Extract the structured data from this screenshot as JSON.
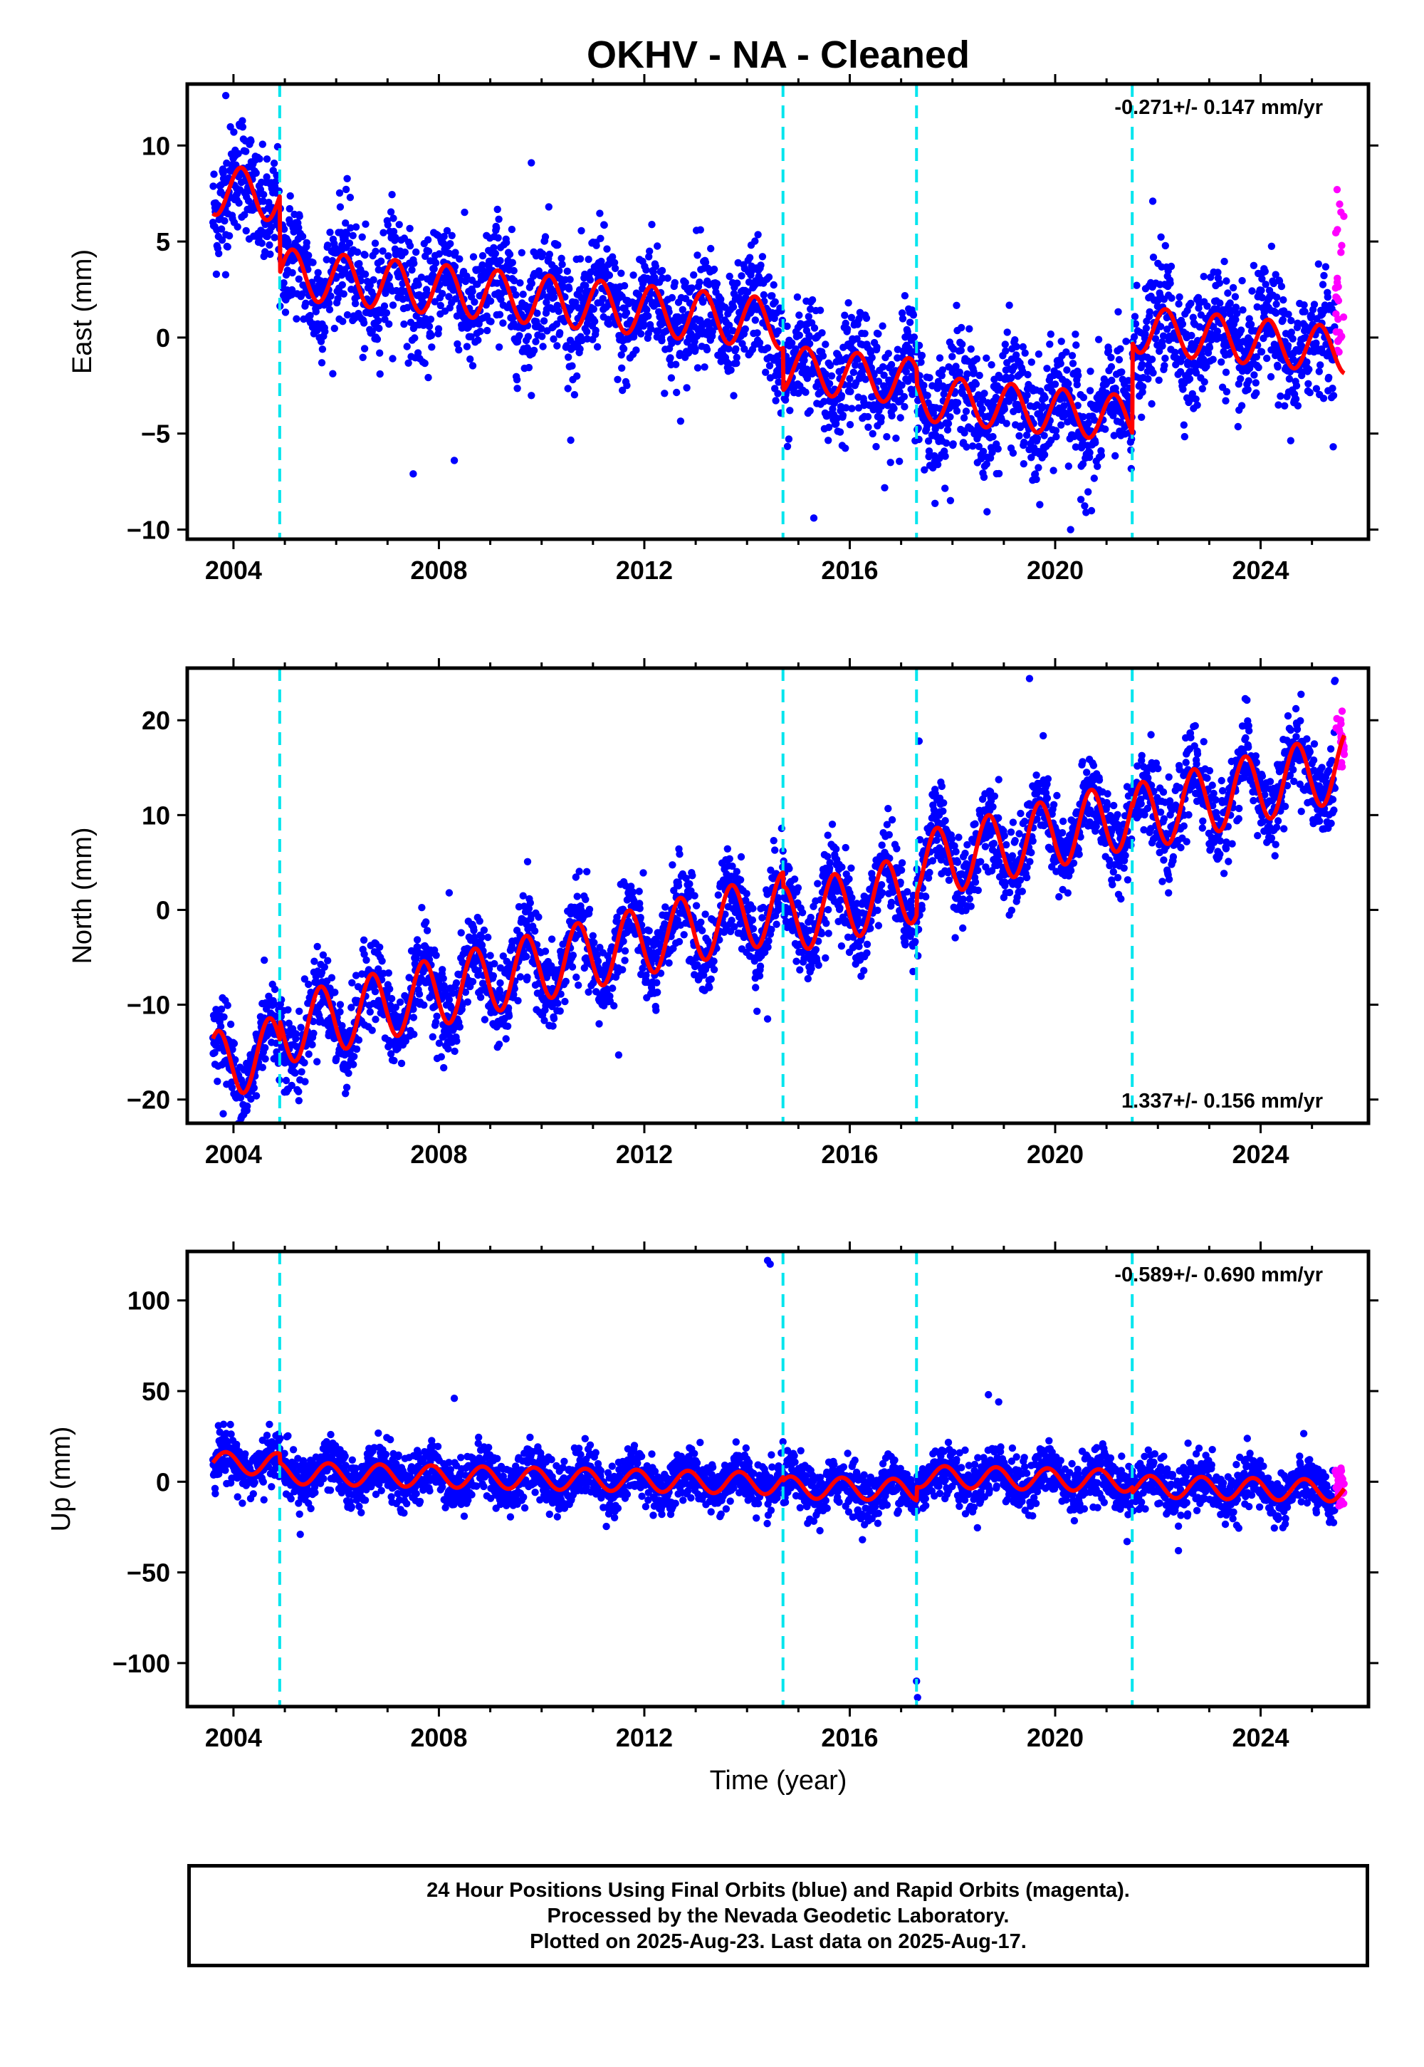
{
  "title": "OKHV  - NA - Cleaned",
  "xlabel": "Time (year)",
  "footer": [
    "24 Hour Positions Using Final Orbits (blue) and Rapid Orbits (magenta).",
    "Processed by the Nevada Geodetic Laboratory.",
    "Plotted on 2025-Aug-23. Last data on 2025-Aug-17."
  ],
  "colors": {
    "final": "#0000ff",
    "rapid": "#ff00ff",
    "model": "#ff0000",
    "breaks": "#00e5ee"
  },
  "chart_data": [
    {
      "type": "scatter",
      "panel": "east",
      "ylabel": "East (mm)",
      "xlim": [
        2003.1,
        2026.1
      ],
      "ylim": [
        -10.5,
        13.2
      ],
      "xticks": [
        2004,
        2008,
        2012,
        2016,
        2020,
        2024
      ],
      "yticks": [
        -10,
        -5,
        0,
        5,
        10
      ],
      "rate_text": "-0.271+/- 0.147 mm/yr",
      "rate_position": "top-right",
      "breaks": [
        2004.9,
        2014.7,
        2017.3,
        2021.5
      ],
      "model": {
        "name": "model",
        "data_start": 2003.6,
        "data_end": 2025.63,
        "segments": [
          {
            "start": 2003.6,
            "end": 2004.9,
            "offset": 7.7,
            "rate": -0.271,
            "amp": 1.3,
            "phase": 0.9
          },
          {
            "start": 2004.9,
            "end": 2014.7,
            "offset": 3.7,
            "rate": -0.271,
            "amp": 1.3,
            "phase": 0.9
          },
          {
            "start": 2014.7,
            "end": 2017.3,
            "offset": 1.4,
            "rate": -0.271,
            "amp": 1.2,
            "phase": 0.9
          },
          {
            "start": 2017.3,
            "end": 2021.5,
            "offset": 0.6,
            "rate": -0.271,
            "amp": 1.2,
            "phase": 0.9
          },
          {
            "start": 2021.5,
            "end": 2025.63,
            "offset": 5.3,
            "rate": -0.271,
            "amp": 1.2,
            "phase": 0.9
          }
        ]
      },
      "final_scatter": 1.5,
      "rapid": {
        "x_start": 2025.45,
        "x_end": 2025.63,
        "y_min": -1.0,
        "y_max": 7.8
      },
      "outliers": [
        [
          2003.85,
          12.6
        ],
        [
          2007.5,
          -7.1
        ],
        [
          2008.3,
          -6.4
        ],
        [
          2009.8,
          9.1
        ],
        [
          2015.3,
          -9.4
        ],
        [
          2019.7,
          -8.7
        ],
        [
          2020.3,
          -10.0
        ],
        [
          2021.9,
          7.1
        ]
      ]
    },
    {
      "type": "scatter",
      "panel": "north",
      "ylabel": "North (mm)",
      "xlim": [
        2003.1,
        2026.1
      ],
      "ylim": [
        -22.5,
        25.5
      ],
      "xticks": [
        2004,
        2008,
        2012,
        2016,
        2020,
        2024
      ],
      "yticks": [
        -20,
        -10,
        0,
        10,
        20
      ],
      "rate_text": "1.337+/- 0.156 mm/yr",
      "rate_position": "bottom-right",
      "breaks": [
        2004.9,
        2014.7,
        2017.3,
        2021.5
      ],
      "model": {
        "name": "model",
        "data_start": 2003.6,
        "data_end": 2025.63,
        "segments": [
          {
            "start": 2003.6,
            "end": 2004.9,
            "offset": -16.5,
            "rate": 1.337,
            "amp": 3.6,
            "phase": 0.45
          },
          {
            "start": 2004.9,
            "end": 2014.7,
            "offset": -14.5,
            "rate": 1.337,
            "amp": 3.6,
            "phase": 0.45
          },
          {
            "start": 2014.7,
            "end": 2017.3,
            "offset": -16.0,
            "rate": 1.337,
            "amp": 3.6,
            "phase": 0.45
          },
          {
            "start": 2017.3,
            "end": 2021.5,
            "offset": -13.8,
            "rate": 1.337,
            "amp": 3.6,
            "phase": 0.45
          },
          {
            "start": 2021.5,
            "end": 2025.63,
            "offset": -14.3,
            "rate": 1.337,
            "amp": 3.6,
            "phase": 0.45
          }
        ]
      },
      "final_scatter": 2.2,
      "rapid": {
        "x_start": 2025.45,
        "x_end": 2025.63,
        "y_min": 15.0,
        "y_max": 22.0
      },
      "outliers": [
        [
          2003.8,
          -21.5
        ],
        [
          2004.6,
          -5.3
        ],
        [
          2011.5,
          -15.3
        ],
        [
          2014.4,
          -11.5
        ],
        [
          2017.35,
          17.8
        ],
        [
          2019.5,
          24.4
        ],
        [
          2025.45,
          24.2
        ],
        [
          2008.2,
          1.8
        ]
      ]
    },
    {
      "type": "scatter",
      "panel": "up",
      "ylabel": "Up (mm)",
      "xlim": [
        2003.1,
        2026.1
      ],
      "ylim": [
        -124,
        127
      ],
      "xticks": [
        2004,
        2008,
        2012,
        2016,
        2020,
        2024
      ],
      "yticks": [
        -100,
        -50,
        0,
        50,
        100
      ],
      "rate_text": "-0.589+/- 0.690 mm/yr",
      "rate_position": "top-right",
      "breaks": [
        2004.9,
        2014.7,
        2017.3,
        2021.5
      ],
      "model": {
        "name": "model",
        "data_start": 2003.6,
        "data_end": 2025.63,
        "segments": [
          {
            "start": 2003.6,
            "end": 2004.9,
            "offset": 10.5,
            "rate": -0.589,
            "amp": 6.0,
            "phase": 0.6
          },
          {
            "start": 2004.9,
            "end": 2014.7,
            "offset": 5.5,
            "rate": -0.589,
            "amp": 6.0,
            "phase": 0.6
          },
          {
            "start": 2014.7,
            "end": 2017.3,
            "offset": 3.5,
            "rate": -0.589,
            "amp": 6.0,
            "phase": 0.6
          },
          {
            "start": 2017.3,
            "end": 2021.5,
            "offset": 11.0,
            "rate": -0.589,
            "amp": 6.0,
            "phase": 0.6
          },
          {
            "start": 2021.5,
            "end": 2025.63,
            "offset": 8.0,
            "rate": -0.589,
            "amp": 6.0,
            "phase": 0.6
          }
        ]
      },
      "final_scatter": 7.0,
      "rapid": {
        "x_start": 2025.45,
        "x_end": 2025.63,
        "y_min": -15.0,
        "y_max": 8.0
      },
      "outliers": [
        [
          2014.4,
          122
        ],
        [
          2014.45,
          120
        ],
        [
          2017.3,
          -110
        ],
        [
          2017.32,
          -119
        ],
        [
          2008.3,
          46
        ],
        [
          2018.7,
          48
        ],
        [
          2018.9,
          44
        ],
        [
          2021.4,
          -33
        ],
        [
          2022.4,
          -38
        ],
        [
          2005.3,
          -29
        ]
      ]
    }
  ]
}
